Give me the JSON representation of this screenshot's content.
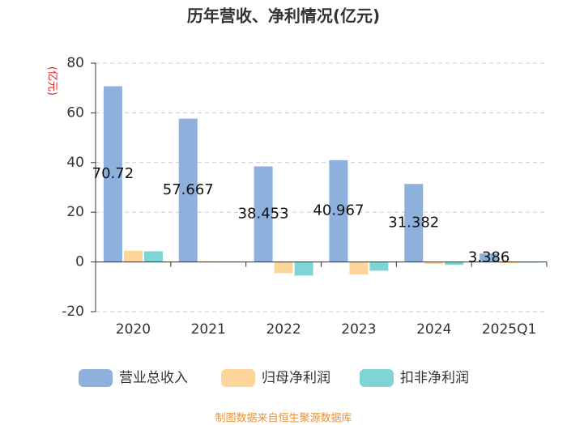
{
  "chart_data": {
    "type": "bar",
    "title": "历年营收、净利情况(亿元)",
    "y_label": "(亿元)",
    "source": "制图数据来自恒生聚源数据库",
    "categories": [
      "2020",
      "2021",
      "2022",
      "2023",
      "2024",
      "2025Q1"
    ],
    "series": [
      {
        "name": "营业总收入",
        "color": "#8eb0dc",
        "values": [
          70.72,
          57.667,
          38.453,
          40.967,
          31.382,
          3.386
        ]
      },
      {
        "name": "归母净利润",
        "color": "#fdd59a",
        "values": [
          4.5,
          0.3,
          -4.5,
          -5.0,
          -0.8,
          -0.5
        ]
      },
      {
        "name": "扣非净利润",
        "color": "#7fd5d5",
        "values": [
          4.3,
          0.2,
          -5.5,
          -3.5,
          -1.2,
          -0.3
        ]
      }
    ],
    "ylim": [
      -20,
      80
    ],
    "yticks": [
      -20,
      0,
      20,
      40,
      60,
      80
    ],
    "grid": true
  }
}
